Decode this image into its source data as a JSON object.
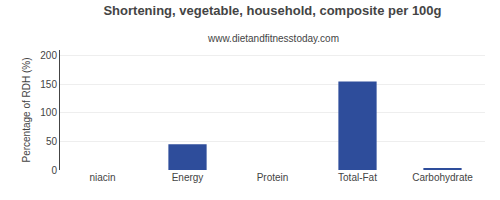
{
  "chart_data": {
    "type": "bar",
    "title": "Shortening, vegetable, household, composite per 100g",
    "subtitle": "www.dietandfitnesstoday.com",
    "categories": [
      "niacin",
      "Energy",
      "Protein",
      "Total-Fat",
      "Carbohydrate"
    ],
    "values": [
      0,
      45,
      0,
      155,
      2
    ],
    "color": "#2e4d9b",
    "ylabel": "Percentage of RDH (%)",
    "ylim": [
      0,
      210
    ],
    "yticks": [
      0,
      50,
      100,
      150,
      200
    ],
    "grid": true
  }
}
